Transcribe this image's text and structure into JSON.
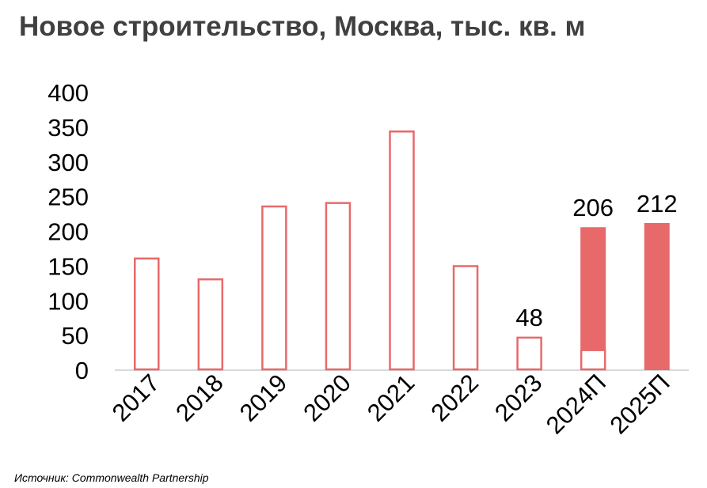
{
  "title": "Новое строительство, Москва, тыс. кв. м",
  "source": "Источник: Commonwealth Partnership",
  "colors": {
    "accent": "#E8696A",
    "title": "#404040",
    "axis": "#D9D9D9"
  },
  "chart_data": {
    "type": "bar",
    "title": "Новое строительство, Москва, тыс. кв. м",
    "categories": [
      "2017",
      "2018",
      "2019",
      "2020",
      "2021",
      "2022",
      "2023",
      "2024П",
      "2025П"
    ],
    "series": [
      {
        "values": [
          162,
          132,
          237,
          242,
          345,
          151,
          48,
          206,
          212
        ]
      }
    ],
    "filled_portion": [
      0,
      0,
      0,
      0,
      0,
      0,
      0,
      176,
      212
    ],
    "data_labels": [
      "",
      "",
      "",
      "",
      "",
      "",
      "48",
      "206",
      "212"
    ],
    "y_ticks": [
      "0",
      "50",
      "100",
      "150",
      "200",
      "250",
      "300",
      "350",
      "400"
    ],
    "ylim": [
      0,
      400
    ],
    "grid": false,
    "legend": "none"
  }
}
